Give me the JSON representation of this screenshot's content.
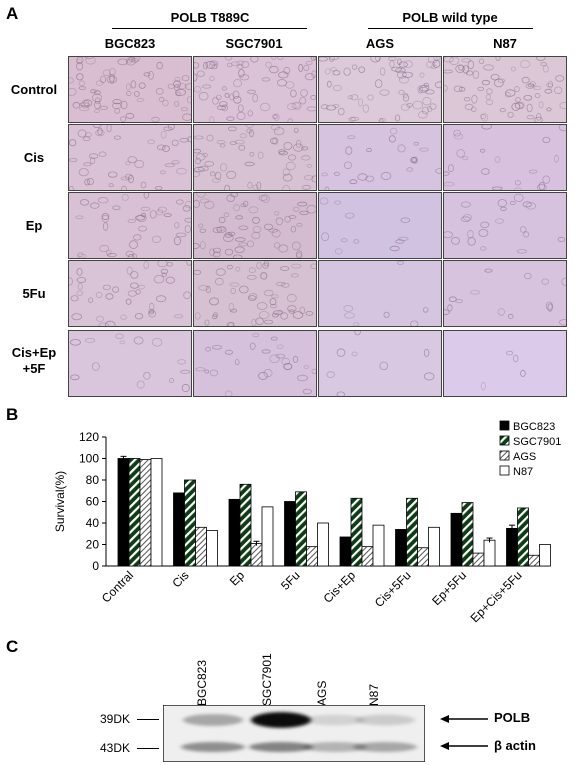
{
  "panel_a": {
    "letter": "A",
    "group_headers": [
      "POLB T889C",
      "POLB wild type"
    ],
    "columns": [
      "BGC823",
      "SGC7901",
      "AGS",
      "N87"
    ],
    "rows": [
      {
        "label": "Control"
      },
      {
        "label": "Cis"
      },
      {
        "label": "Ep"
      },
      {
        "label": "5Fu"
      },
      {
        "label": "Cis+Ep\n+5F"
      }
    ],
    "images": [
      {
        "tone": "#d9bdd0",
        "density": 0.95
      },
      {
        "tone": "#dac3d6",
        "density": 0.95
      },
      {
        "tone": "#dccadb",
        "density": 0.9
      },
      {
        "tone": "#dbc7d6",
        "density": 0.9
      },
      {
        "tone": "#d9c2d6",
        "density": 0.6
      },
      {
        "tone": "#d7c2d4",
        "density": 0.75
      },
      {
        "tone": "#d6c3e0",
        "density": 0.3
      },
      {
        "tone": "#d8c1de",
        "density": 0.3
      },
      {
        "tone": "#d9c1d5",
        "density": 0.55
      },
      {
        "tone": "#d3bcd0",
        "density": 0.8
      },
      {
        "tone": "#d2c2e2",
        "density": 0.15
      },
      {
        "tone": "#d6c2df",
        "density": 0.3
      },
      {
        "tone": "#d9c3d7",
        "density": 0.55
      },
      {
        "tone": "#d6c1d3",
        "density": 0.75
      },
      {
        "tone": "#d5c5e1",
        "density": 0.1
      },
      {
        "tone": "#d7c3de",
        "density": 0.2
      },
      {
        "tone": "#d9c6dc",
        "density": 0.2
      },
      {
        "tone": "#d6c1dc",
        "density": 0.35
      },
      {
        "tone": "#d8c8e2",
        "density": 0.12
      },
      {
        "tone": "#dccaea",
        "density": 0.05
      }
    ]
  },
  "panel_b": {
    "letter": "B",
    "chart_data": {
      "type": "bar",
      "categories": [
        "Contral",
        "Cis",
        "Ep",
        "5Fu",
        "Cis+Ep",
        "Cis+5Fu",
        "Ep+5Fu",
        "Ep+Cis+5Fu"
      ],
      "series": [
        {
          "name": "BGC823",
          "values": [
            100,
            68,
            62,
            60,
            27,
            34,
            49,
            35
          ],
          "errors": [
            2,
            0,
            0,
            0,
            0,
            0,
            0,
            3
          ]
        },
        {
          "name": "SGC7901",
          "values": [
            100,
            80,
            76,
            69,
            63,
            63,
            59,
            54
          ],
          "errors": [
            0,
            0,
            0,
            0,
            0,
            0,
            0,
            0
          ]
        },
        {
          "name": "AGS",
          "values": [
            99,
            36,
            21,
            18,
            18,
            17,
            12,
            10
          ],
          "errors": [
            0,
            0,
            2,
            0,
            0,
            0,
            0,
            0
          ]
        },
        {
          "name": "N87",
          "values": [
            100,
            33,
            55,
            40,
            38,
            36,
            24,
            20
          ],
          "errors": [
            0,
            0,
            0,
            0,
            0,
            0,
            2,
            0
          ]
        }
      ],
      "ylabel": "Survival(%)",
      "ylim": [
        0,
        120
      ],
      "yticks": [
        0,
        20,
        40,
        60,
        80,
        100,
        120
      ],
      "legend": "top-right",
      "grid": false
    }
  },
  "panel_c": {
    "letter": "C",
    "lanes": [
      "BGC823",
      "SGC7901",
      "AGS",
      "N87"
    ],
    "left_labels": [
      "39DK",
      "43DK"
    ],
    "right_labels": [
      "POLB",
      "β actin"
    ],
    "band_intensity": {
      "POLB": [
        0.3,
        0.95,
        0.12,
        0.15
      ],
      "beta_actin": [
        0.4,
        0.45,
        0.25,
        0.3
      ]
    }
  }
}
